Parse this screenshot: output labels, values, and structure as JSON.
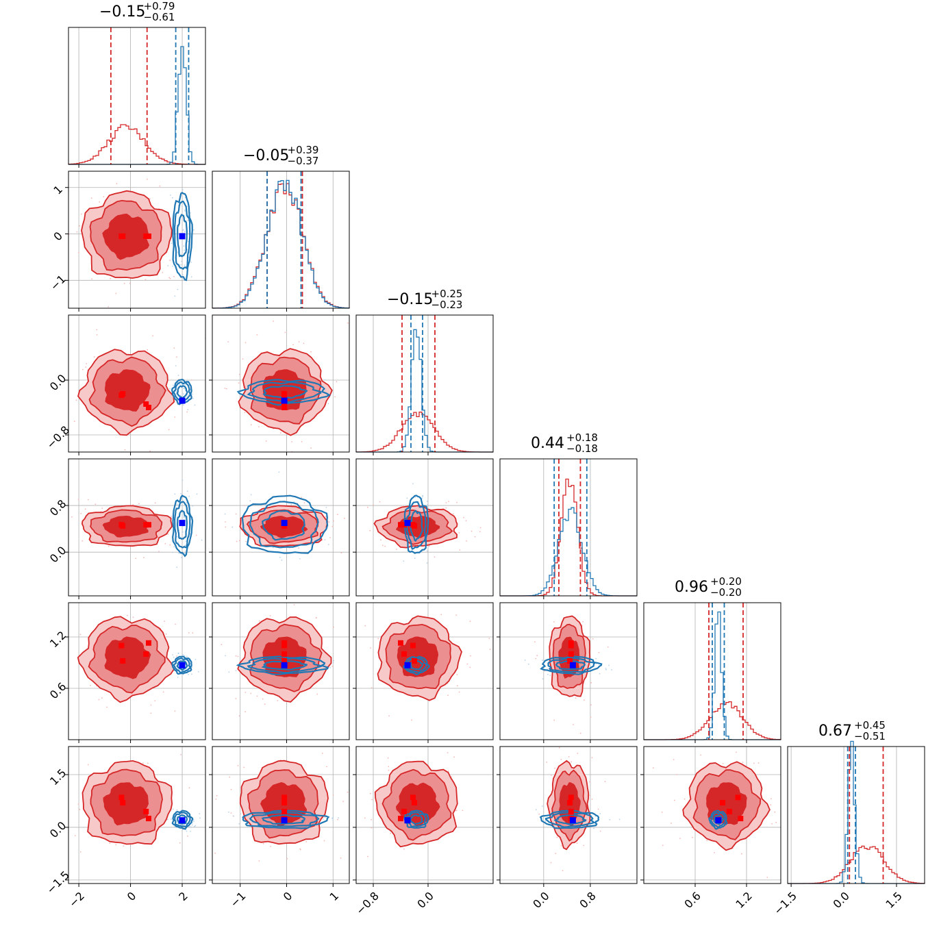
{
  "chart_data": {
    "type": "corner",
    "colors": {
      "red": "#d62728",
      "blue": "#1f77b4",
      "true_marker": "#0000ff",
      "red_marker": "#ff0000"
    },
    "grid": true,
    "params": [
      {
        "title": {
          "median": "−0.15",
          "up": "+0.79",
          "down": "−0.61"
        },
        "range": [
          -2.4,
          2.9
        ],
        "ticks": [
          {
            "v": -2,
            "label": "−2"
          },
          {
            "v": 0,
            "label": "0"
          },
          {
            "v": 2,
            "label": "2"
          }
        ],
        "red": {
          "mean": -0.15,
          "sd": 0.7
        },
        "blue": {
          "mean": 2.0,
          "sd": 0.15
        },
        "red_q": [
          -0.76,
          0.64
        ],
        "blue_q": [
          1.75,
          2.25
        ]
      },
      {
        "title": {
          "median": "−0.05",
          "up": "+0.39",
          "down": "−0.37"
        },
        "range": [
          -1.6,
          1.35
        ],
        "ticks": [
          {
            "v": -1,
            "label": "−1"
          },
          {
            "v": 0,
            "label": "0"
          },
          {
            "v": 1,
            "label": "1"
          }
        ],
        "red": {
          "mean": -0.05,
          "sd": 0.38
        },
        "blue": {
          "mean": -0.05,
          "sd": 0.37
        },
        "red_q": [
          -0.42,
          0.34
        ],
        "blue_q": [
          -0.42,
          0.31
        ]
      },
      {
        "title": {
          "median": "−0.15",
          "up": "+0.25",
          "down": "−0.23"
        },
        "range": [
          -1.05,
          0.95
        ],
        "ticks": [
          {
            "v": -0.8,
            "label": "−0.8"
          },
          {
            "v": 0,
            "label": "0.0"
          }
        ],
        "red": {
          "mean": -0.15,
          "sd": 0.24
        },
        "blue": {
          "mean": -0.17,
          "sd": 0.07
        },
        "red_q": [
          -0.38,
          0.1
        ],
        "blue_q": [
          -0.25,
          -0.08
        ]
      },
      {
        "title": {
          "median": "0.44",
          "up": "+0.18",
          "down": "−0.18"
        },
        "range": [
          -0.75,
          1.6
        ],
        "ticks": [
          {
            "v": 0,
            "label": "0.0"
          },
          {
            "v": 0.8,
            "label": "0.8"
          }
        ],
        "red": {
          "mean": 0.44,
          "sd": 0.14
        },
        "blue": {
          "mean": 0.46,
          "sd": 0.2
        },
        "red_q": [
          0.26,
          0.63
        ],
        "blue_q": [
          0.18,
          0.74
        ]
      },
      {
        "title": {
          "median": "0.96",
          "up": "+0.20",
          "down": "−0.20"
        },
        "range": [
          0.0,
          1.6
        ],
        "ticks": [
          {
            "v": 0.6,
            "label": "0.6"
          },
          {
            "v": 1.2,
            "label": "1.2"
          }
        ],
        "red": {
          "mean": 0.96,
          "sd": 0.19
        },
        "blue": {
          "mean": 0.87,
          "sd": 0.04
        },
        "red_q": [
          0.76,
          1.16
        ],
        "blue_q": [
          0.8,
          0.94
        ]
      },
      {
        "title": {
          "median": "0.67",
          "up": "+0.45",
          "down": "−0.51"
        },
        "range": [
          -1.6,
          2.3
        ],
        "ticks": [
          {
            "v": -1.5,
            "label": "−1.5"
          },
          {
            "v": 0,
            "label": "0.0"
          },
          {
            "v": 1.5,
            "label": "1.5"
          }
        ],
        "red": {
          "mean": 0.67,
          "sd": 0.48
        },
        "blue": {
          "mean": 0.22,
          "sd": 0.1
        },
        "red_q": [
          0.16,
          1.12
        ],
        "blue_q": [
          0.11,
          0.33
        ]
      }
    ],
    "truth_values": [
      2.0,
      -0.05,
      -0.3,
      0.5,
      0.87,
      0.2
    ],
    "red_markers": [
      [
        -0.3,
        -0.05,
        -0.2,
        0.45,
        0.92,
        0.7
      ],
      [
        -0.35,
        -0.05,
        -0.22,
        0.47,
        1.1,
        0.85
      ],
      [
        0.6,
        -0.05,
        -0.35,
        0.47,
        1.0,
        0.45
      ],
      [
        0.7,
        -0.05,
        -0.4,
        0.47,
        1.13,
        0.25
      ]
    ]
  }
}
